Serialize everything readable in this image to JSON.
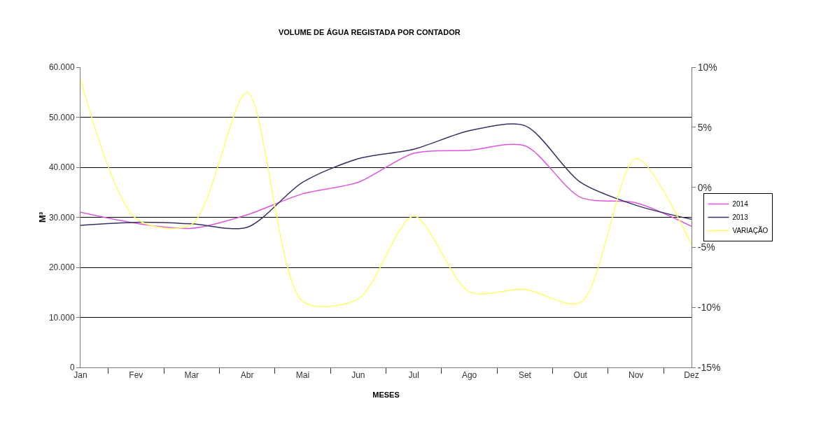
{
  "chart_data": {
    "type": "line",
    "title": "VOLUME DE ÁGUA REGISTADA POR CONTADOR",
    "xlabel": "MESES",
    "ylabel": "M³",
    "categories": [
      "Jan",
      "Fev",
      "Mar",
      "Abr",
      "Mai",
      "Jun",
      "Jul",
      "Ago",
      "Set",
      "Out",
      "Nov",
      "Dez"
    ],
    "series": [
      {
        "name": "2014",
        "color": "#dd55dd",
        "values": [
          31000,
          28800,
          27800,
          30500,
          34700,
          37000,
          42800,
          43400,
          44300,
          34000,
          32900,
          28200
        ]
      },
      {
        "name": "2013",
        "color": "#333366",
        "values": [
          28400,
          29000,
          28700,
          28000,
          37000,
          41700,
          43600,
          47300,
          48300,
          37000,
          32400,
          29600
        ]
      },
      {
        "name": "VARIAÇÃO",
        "color": "#ffff66",
        "axis": "y2",
        "values": [
          9.0,
          -2.6,
          -3.1,
          7.9,
          -9.5,
          -9.3,
          -2.4,
          -8.7,
          -8.5,
          -9.6,
          2.4,
          -4.8
        ]
      }
    ],
    "ylim": [
      0,
      60000
    ],
    "yticks": [
      {
        "value": 0,
        "label": "0"
      },
      {
        "value": 10000,
        "label": "10.000"
      },
      {
        "value": 20000,
        "label": "20.000"
      },
      {
        "value": 30000,
        "label": "30.000"
      },
      {
        "value": 40000,
        "label": "40.000"
      },
      {
        "value": 50000,
        "label": "50.000"
      },
      {
        "value": 60000,
        "label": "60.000"
      }
    ],
    "y2lim": [
      -15,
      10
    ],
    "y2ticks": [
      {
        "value": -15,
        "label": "-15%"
      },
      {
        "value": -10,
        "label": "-10%"
      },
      {
        "value": -5,
        "label": "-5%"
      },
      {
        "value": 0,
        "label": "0%"
      },
      {
        "value": 5,
        "label": "5%"
      },
      {
        "value": 10,
        "label": "10%"
      }
    ],
    "grid": "y",
    "legend": "right",
    "marker": "none",
    "line_style": "solid"
  }
}
